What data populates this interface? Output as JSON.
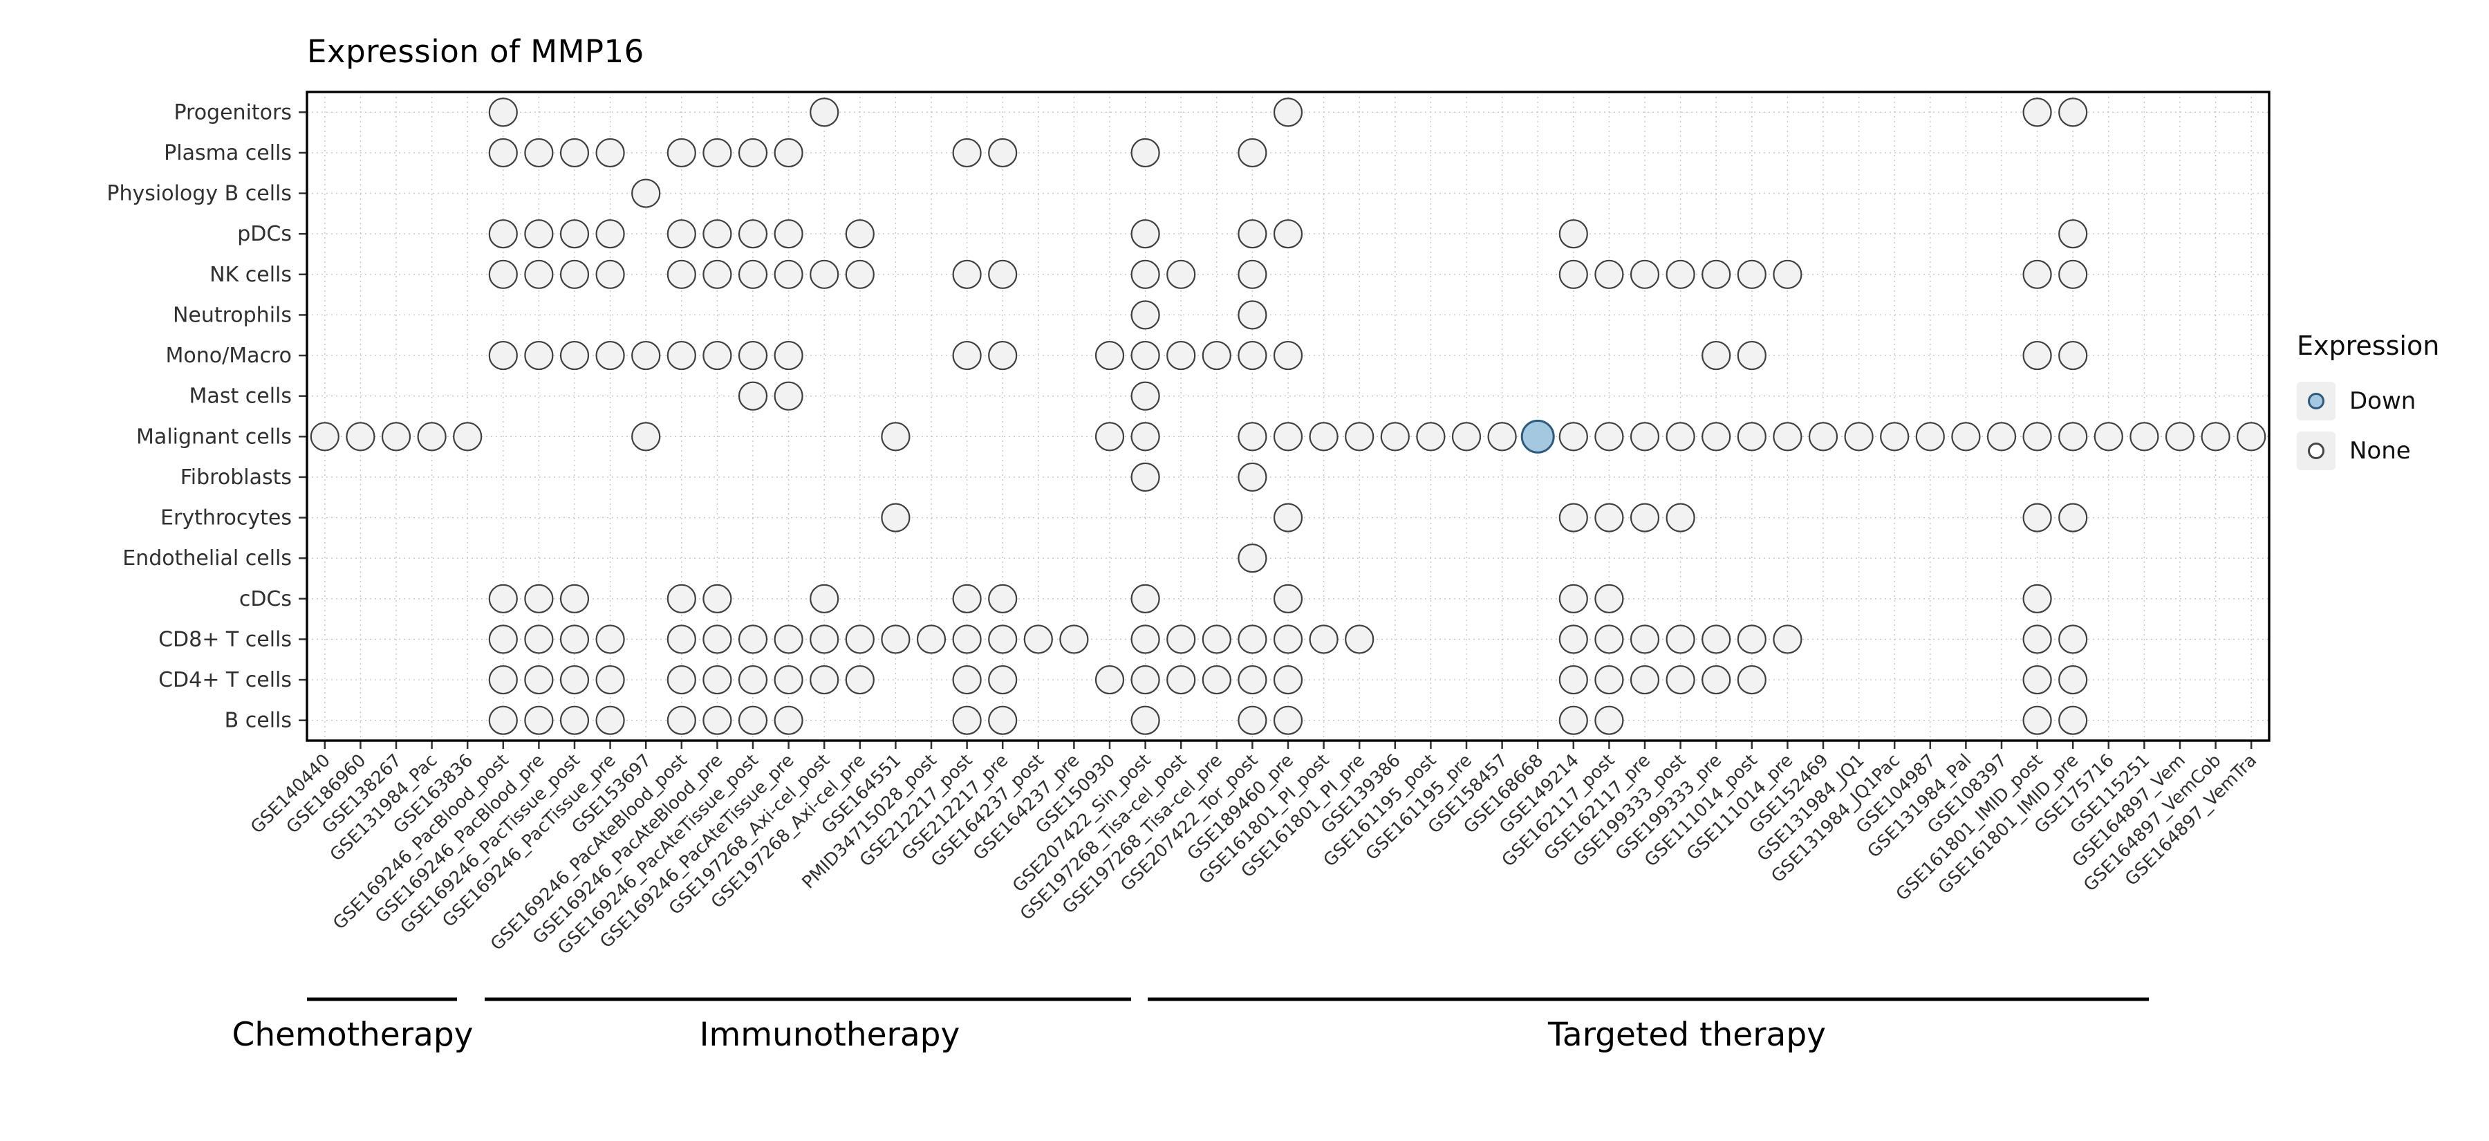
{
  "title": "Expression of MMP16",
  "legend": {
    "title": "Expression",
    "position": "right",
    "items": [
      {
        "label": "Down",
        "fill": "#a5c8e1",
        "stroke": "#2e5a7d",
        "filled": true
      },
      {
        "label": "None",
        "fill": "#ffffff",
        "stroke": "#474747",
        "filled": false
      }
    ]
  },
  "chart_data": {
    "type": "scatter",
    "subtype": "dot-matrix",
    "title": "Expression of MMP16",
    "legend_title": "Expression",
    "legend_values": [
      "Down",
      "None"
    ],
    "grid": true,
    "rows": [
      "Progenitors",
      "Plasma cells",
      "Physiology B cells",
      "pDCs",
      "NK cells",
      "Neutrophils",
      "Mono/Macro",
      "Mast cells",
      "Malignant cells",
      "Fibroblasts",
      "Erythrocytes",
      "Endothelial cells",
      "cDCs",
      "CD8+ T cells",
      "CD4+ T cells",
      "B cells"
    ],
    "columns": [
      "GSE140440",
      "GSE186960",
      "GSE138267",
      "GSE131984_Pac",
      "GSE163836",
      "GSE169246_PacBlood_post",
      "GSE169246_PacBlood_pre",
      "GSE169246_PacTissue_post",
      "GSE169246_PacTissue_pre",
      "GSE153697",
      "GSE169246_PacAteBlood_post",
      "GSE169246_PacAteBlood_pre",
      "GSE169246_PacAteTissue_post",
      "GSE169246_PacAteTissue_pre",
      "GSE197268_Axi-cel_post",
      "GSE197268_Axi-cel_pre",
      "GSE164551",
      "PMID34715028_post",
      "GSE212217_post",
      "GSE212217_pre",
      "GSE164237_post",
      "GSE164237_pre",
      "GSE150930",
      "GSE207422_Sin_post",
      "GSE197268_Tisa-cel_post",
      "GSE197268_Tisa-cel_pre",
      "GSE207422_Tor_post",
      "GSE189460_pre",
      "GSE161801_PI_post",
      "GSE161801_PI_pre",
      "GSE139386",
      "GSE161195_post",
      "GSE161195_pre",
      "GSE158457",
      "GSE168668",
      "GSE149214",
      "GSE162117_post",
      "GSE162117_pre",
      "GSE199333_post",
      "GSE199333_pre",
      "GSE111014_post",
      "GSE111014_pre",
      "GSE152469",
      "GSE131984_JQ1",
      "GSE131984_JQ1Pac",
      "GSE104987",
      "GSE131984_Pal",
      "GSE108397",
      "GSE161801_IMID_post",
      "GSE161801_IMID_pre",
      "GSE175716",
      "GSE115251",
      "GSE164897_Vem",
      "GSE164897_VemCob",
      "GSE164897_VemTra"
    ],
    "groups": [
      {
        "label": "Chemotherapy",
        "start": 0,
        "end": 4
      },
      {
        "label": "Immunotherapy",
        "start": 5,
        "end": 22
      },
      {
        "label": "Targeted therapy",
        "start": 23,
        "end": 54
      }
    ],
    "dots": [
      {
        "row": "Progenitors",
        "cols": [
          5,
          14,
          27,
          48,
          49
        ]
      },
      {
        "row": "Plasma cells",
        "cols": [
          5,
          6,
          7,
          8,
          10,
          11,
          12,
          13,
          18,
          19,
          23,
          26
        ]
      },
      {
        "row": "Physiology B cells",
        "cols": [
          9
        ]
      },
      {
        "row": "pDCs",
        "cols": [
          5,
          6,
          7,
          8,
          10,
          11,
          12,
          13,
          15,
          23,
          26,
          27,
          35,
          49
        ]
      },
      {
        "row": "NK cells",
        "cols": [
          5,
          6,
          7,
          8,
          10,
          11,
          12,
          13,
          14,
          15,
          18,
          19,
          23,
          24,
          26,
          35,
          36,
          37,
          38,
          39,
          40,
          41,
          48,
          49
        ]
      },
      {
        "row": "Neutrophils",
        "cols": [
          23,
          26
        ]
      },
      {
        "row": "Mono/Macro",
        "cols": [
          5,
          6,
          7,
          8,
          9,
          10,
          11,
          12,
          13,
          18,
          19,
          22,
          23,
          24,
          25,
          26,
          27,
          39,
          40,
          48,
          49
        ]
      },
      {
        "row": "Mast cells",
        "cols": [
          12,
          13,
          23
        ]
      },
      {
        "row": "Malignant cells",
        "cols": [
          0,
          1,
          2,
          3,
          4,
          9,
          16,
          22,
          23,
          26,
          27,
          28,
          29,
          30,
          31,
          32,
          33,
          34,
          35,
          36,
          37,
          38,
          39,
          40,
          41,
          42,
          43,
          44,
          45,
          46,
          47,
          48,
          49,
          50,
          51,
          52,
          53,
          54
        ]
      },
      {
        "row": "Fibroblasts",
        "cols": [
          23,
          26
        ]
      },
      {
        "row": "Erythrocytes",
        "cols": [
          16,
          27,
          35,
          36,
          37,
          38,
          48,
          49
        ]
      },
      {
        "row": "Endothelial cells",
        "cols": [
          26
        ]
      },
      {
        "row": "cDCs",
        "cols": [
          5,
          6,
          7,
          10,
          11,
          14,
          18,
          19,
          23,
          27,
          35,
          36,
          48
        ]
      },
      {
        "row": "CD8+ T cells",
        "cols": [
          5,
          6,
          7,
          8,
          10,
          11,
          12,
          13,
          14,
          15,
          16,
          17,
          18,
          19,
          20,
          21,
          23,
          24,
          25,
          26,
          27,
          28,
          29,
          35,
          36,
          37,
          38,
          39,
          40,
          41,
          48,
          49
        ]
      },
      {
        "row": "CD4+ T cells",
        "cols": [
          5,
          6,
          7,
          8,
          10,
          11,
          12,
          13,
          14,
          15,
          18,
          19,
          22,
          23,
          24,
          25,
          26,
          27,
          35,
          36,
          37,
          38,
          39,
          40,
          48,
          49
        ]
      },
      {
        "row": "B cells",
        "cols": [
          5,
          6,
          7,
          8,
          10,
          11,
          12,
          13,
          18,
          19,
          23,
          26,
          27,
          35,
          36,
          48,
          49
        ]
      }
    ],
    "down_points": [
      {
        "row": "Malignant cells",
        "column": "GSE168668",
        "value": "Down"
      }
    ],
    "colors": {
      "none_fill": "#f2f2f2",
      "none_stroke": "#3f3f3f",
      "down_fill": "#a5c8e1",
      "down_stroke": "#2e5a7d",
      "grid": "#c6c6c6",
      "panel_border": "#000000",
      "axis_text": "#303030"
    }
  }
}
